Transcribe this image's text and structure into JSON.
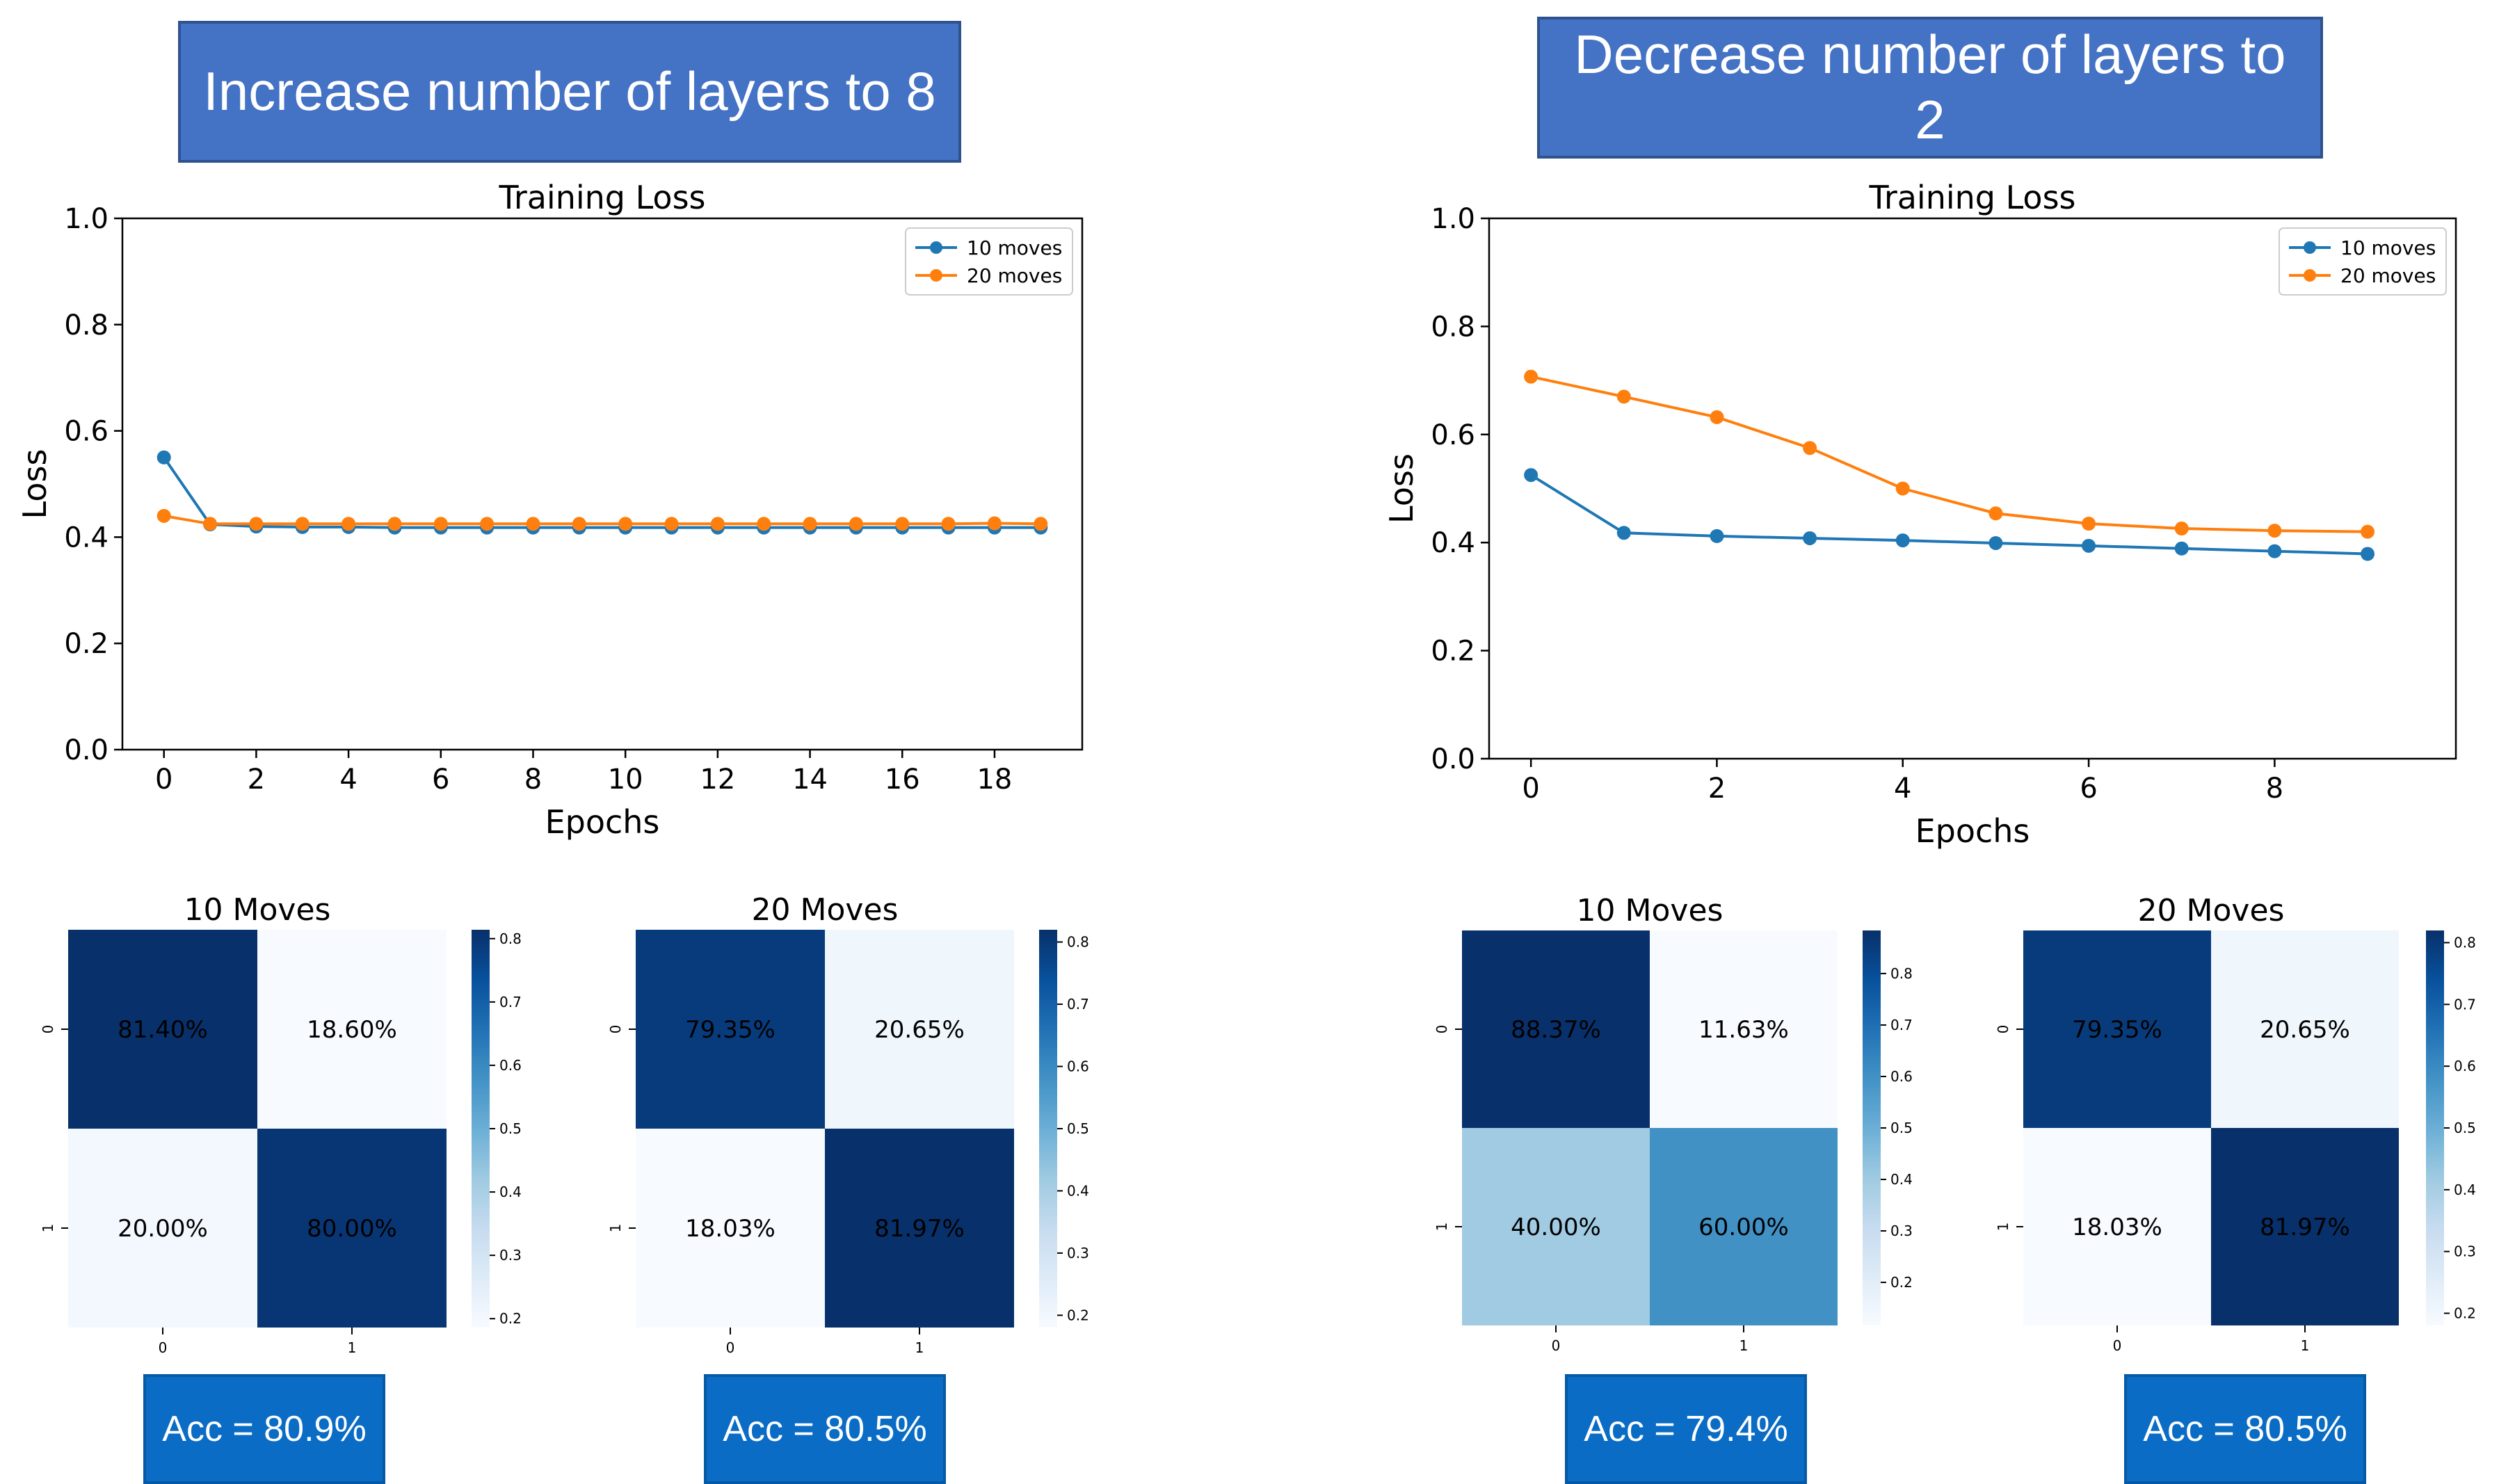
{
  "panels": [
    {
      "banner": "Increase number of layers to 8",
      "accuracy": "Acc = 80.9%"
    },
    {
      "banner": "Decrease number of layers to 2",
      "accuracy": "Acc = 79.4%"
    }
  ],
  "cm_accuracies": [
    "Acc = 80.9%",
    "Acc = 80.5%",
    "Acc = 79.4%",
    "Acc = 80.5%"
  ],
  "colors": {
    "series_10": "#1f77b4",
    "series_20": "#ff7f0e",
    "banner_bg": "#4472c4",
    "acc_bg": "#0a6cc4"
  },
  "chart_data": [
    {
      "type": "line",
      "title": "Training Loss",
      "xlabel": "Epochs",
      "ylabel": "Loss",
      "ylim": [
        0.0,
        1.0
      ],
      "xlim": [
        -0.9,
        19.9
      ],
      "xticks": [
        0,
        2,
        4,
        6,
        8,
        10,
        12,
        14,
        16,
        18
      ],
      "yticks": [
        "0.0",
        "0.2",
        "0.4",
        "0.6",
        "0.8",
        "1.0"
      ],
      "legend": "top-right",
      "grid": false,
      "x": [
        0,
        1,
        2,
        3,
        4,
        5,
        6,
        7,
        8,
        9,
        10,
        11,
        12,
        13,
        14,
        15,
        16,
        17,
        18,
        19
      ],
      "series": [
        {
          "name": "10 moves",
          "values": [
            0.55,
            0.424,
            0.42,
            0.419,
            0.419,
            0.418,
            0.418,
            0.418,
            0.418,
            0.418,
            0.418,
            0.418,
            0.418,
            0.418,
            0.418,
            0.418,
            0.418,
            0.418,
            0.418,
            0.418
          ]
        },
        {
          "name": "20 moves",
          "values": [
            0.44,
            0.425,
            0.425,
            0.425,
            0.425,
            0.425,
            0.425,
            0.425,
            0.425,
            0.425,
            0.425,
            0.425,
            0.425,
            0.425,
            0.425,
            0.425,
            0.425,
            0.425,
            0.426,
            0.425
          ]
        }
      ]
    },
    {
      "type": "line",
      "title": "Training Loss",
      "xlabel": "Epochs",
      "ylabel": "Loss",
      "ylim": [
        0.0,
        1.0
      ],
      "xlim": [
        -0.45,
        9.95
      ],
      "xticks": [
        0,
        2,
        4,
        6,
        8
      ],
      "yticks": [
        "0.0",
        "0.2",
        "0.4",
        "0.6",
        "0.8",
        "1.0"
      ],
      "legend": "top-right",
      "grid": false,
      "x": [
        0,
        1,
        2,
        3,
        4,
        5,
        6,
        7,
        8,
        9
      ],
      "series": [
        {
          "name": "10 moves",
          "values": [
            0.525,
            0.418,
            0.412,
            0.408,
            0.404,
            0.399,
            0.394,
            0.389,
            0.384,
            0.379
          ]
        },
        {
          "name": "20 moves",
          "values": [
            0.707,
            0.67,
            0.632,
            0.575,
            0.5,
            0.454,
            0.435,
            0.426,
            0.422,
            0.42
          ]
        }
      ]
    },
    {
      "type": "heatmap",
      "title": "10 Moves",
      "row_labels": [
        "0",
        "1"
      ],
      "col_labels": [
        "0",
        "1"
      ],
      "values": [
        [
          0.814,
          0.186
        ],
        [
          0.2,
          0.8
        ]
      ],
      "annotations": [
        [
          "81.40%",
          "18.60%"
        ],
        [
          "20.00%",
          "80.00%"
        ]
      ],
      "colorbar_ticks": [
        "0.2",
        "0.3",
        "0.4",
        "0.5",
        "0.6",
        "0.7",
        "0.8"
      ],
      "colorbar_range": [
        0.186,
        0.814
      ]
    },
    {
      "type": "heatmap",
      "title": "20 Moves",
      "row_labels": [
        "0",
        "1"
      ],
      "col_labels": [
        "0",
        "1"
      ],
      "values": [
        [
          0.7935,
          0.2065
        ],
        [
          0.1803,
          0.8197
        ]
      ],
      "annotations": [
        [
          "79.35%",
          "20.65%"
        ],
        [
          "18.03%",
          "81.97%"
        ]
      ],
      "colorbar_ticks": [
        "0.2",
        "0.3",
        "0.4",
        "0.5",
        "0.6",
        "0.7",
        "0.8"
      ],
      "colorbar_range": [
        0.1803,
        0.8197
      ]
    },
    {
      "type": "heatmap",
      "title": "10 Moves",
      "row_labels": [
        "0",
        "1"
      ],
      "col_labels": [
        "0",
        "1"
      ],
      "values": [
        [
          0.8837,
          0.1163
        ],
        [
          0.4,
          0.6
        ]
      ],
      "annotations": [
        [
          "88.37%",
          "11.63%"
        ],
        [
          "40.00%",
          "60.00%"
        ]
      ],
      "colorbar_ticks": [
        "0.2",
        "0.3",
        "0.4",
        "0.5",
        "0.6",
        "0.7",
        "0.8"
      ],
      "colorbar_range": [
        0.1163,
        0.8837
      ]
    },
    {
      "type": "heatmap",
      "title": "20 Moves",
      "row_labels": [
        "0",
        "1"
      ],
      "col_labels": [
        "0",
        "1"
      ],
      "values": [
        [
          0.7935,
          0.2065
        ],
        [
          0.1803,
          0.8197
        ]
      ],
      "annotations": [
        [
          "79.35%",
          "20.65%"
        ],
        [
          "18.03%",
          "81.97%"
        ]
      ],
      "colorbar_ticks": [
        "0.2",
        "0.3",
        "0.4",
        "0.5",
        "0.6",
        "0.7",
        "0.8"
      ],
      "colorbar_range": [
        0.1803,
        0.8197
      ]
    }
  ]
}
